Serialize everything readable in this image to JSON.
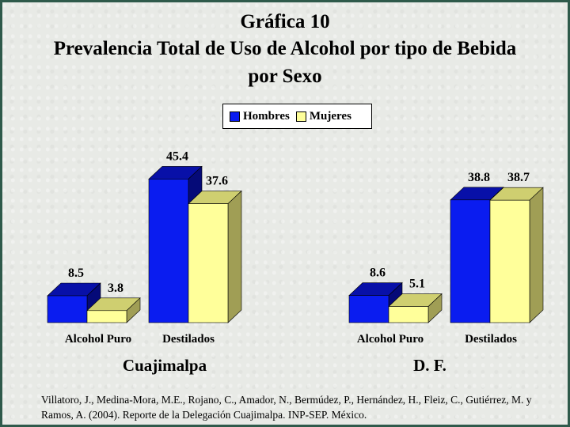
{
  "title_lines": [
    "Gráfica 10",
    "Prevalencia Total de Uso de Alcohol por tipo de Bebida",
    "por Sexo"
  ],
  "legend": [
    {
      "label": "Hombres",
      "color": "#0a1cf0"
    },
    {
      "label": "Mujeres",
      "color": "#ffff9a"
    }
  ],
  "citation": "Villatoro, J., Medina-Mora, M.E., Rojano, C., Amador, N., Bermúdez, P., Hernández, H., Fleiz, C., Gutiérrez, M. y Ramos, A. (2004). Reporte de la Delegación Cuajimalpa. INP-SEP. México.",
  "chart_data": [
    {
      "type": "bar",
      "title": "Cuajimalpa",
      "categories": [
        "Alcohol Puro",
        "Destilados"
      ],
      "series": [
        {
          "name": "Hombres",
          "values": [
            8.5,
            45.4
          ]
        },
        {
          "name": "Mujeres",
          "values": [
            3.8,
            37.6
          ]
        }
      ],
      "ylim": [
        0,
        50
      ]
    },
    {
      "type": "bar",
      "title": "D. F.",
      "categories": [
        "Alcohol Puro",
        "Destilados"
      ],
      "series": [
        {
          "name": "Hombres",
          "values": [
            8.6,
            38.8
          ]
        },
        {
          "name": "Mujeres",
          "values": [
            5.1,
            38.7
          ]
        }
      ],
      "ylim": [
        0,
        50
      ]
    }
  ]
}
